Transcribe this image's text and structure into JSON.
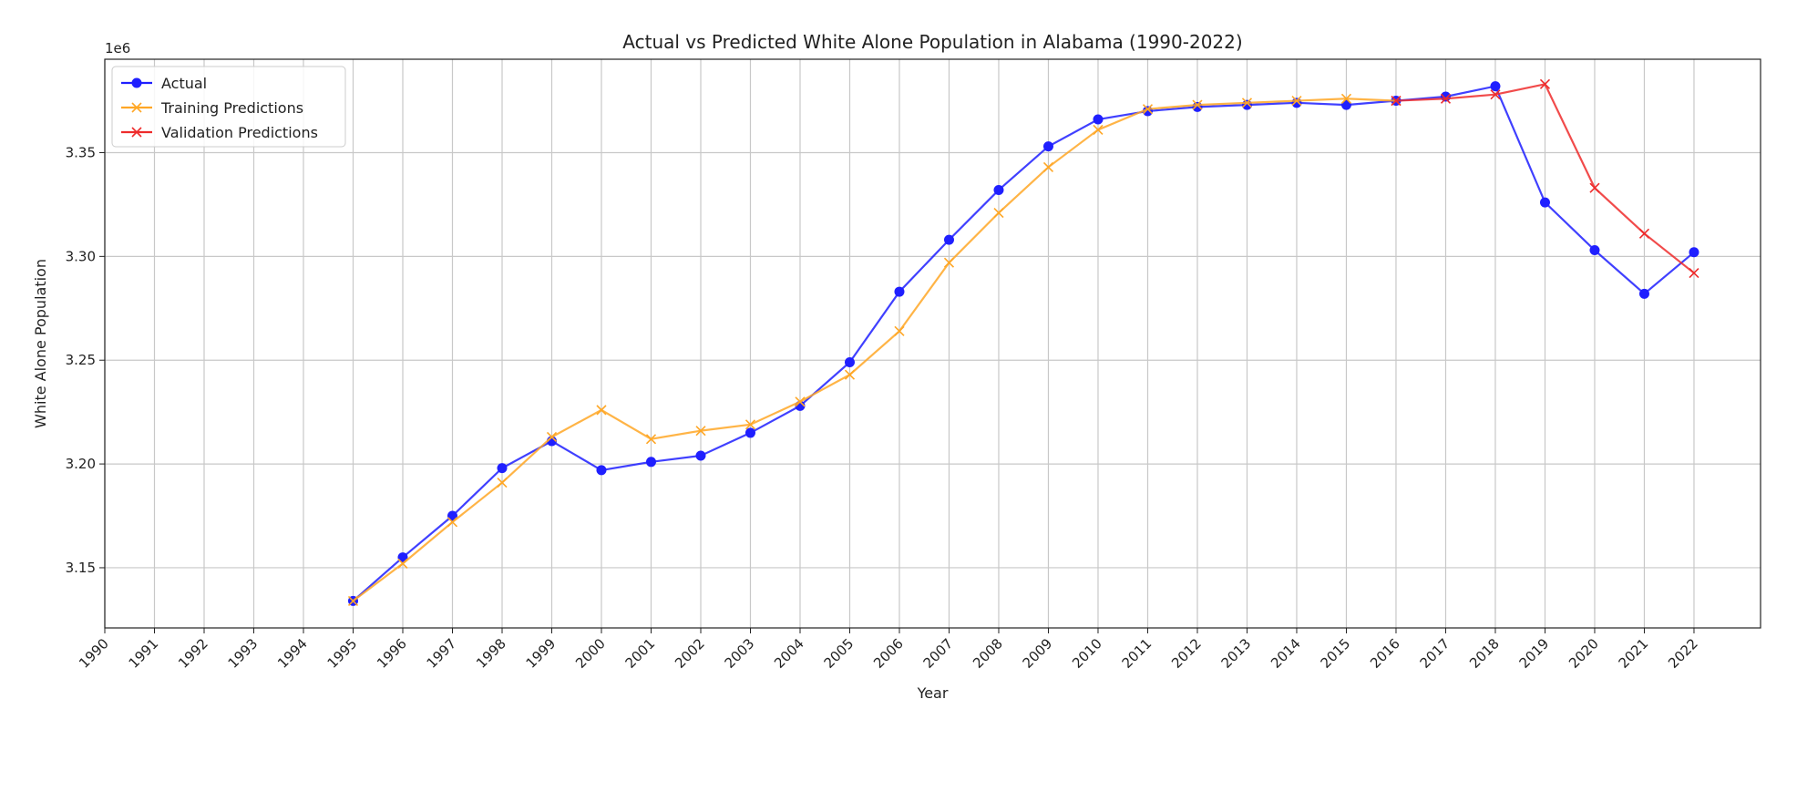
{
  "chart_data": {
    "type": "line",
    "title": "Actual vs Predicted White Alone Population in Alabama (1990-2022)",
    "xlabel": "Year",
    "ylabel": "White Alone Population",
    "y_multiplier_label": "1e6",
    "xlim": [
      1990,
      2022
    ],
    "ylim": [
      3.121,
      3.395
    ],
    "x_ticks": [
      "1990",
      "1991",
      "1992",
      "1993",
      "1994",
      "1995",
      "1996",
      "1997",
      "1998",
      "1999",
      "2000",
      "2001",
      "2002",
      "2003",
      "2004",
      "2005",
      "2006",
      "2007",
      "2008",
      "2009",
      "2010",
      "2011",
      "2012",
      "2013",
      "2014",
      "2015",
      "2016",
      "2017",
      "2018",
      "2019",
      "2020",
      "2021",
      "2022"
    ],
    "y_ticks": [
      3.15,
      3.2,
      3.25,
      3.3,
      3.35
    ],
    "y_tick_labels": [
      "3.15",
      "3.20",
      "3.25",
      "3.30",
      "3.35"
    ],
    "grid": true,
    "legend_position": "top-left",
    "series": [
      {
        "name": "Actual",
        "color": "#1f1fff",
        "marker": "circle",
        "x": [
          1995,
          1996,
          1997,
          1998,
          1999,
          2000,
          2001,
          2002,
          2003,
          2004,
          2005,
          2006,
          2007,
          2008,
          2009,
          2010,
          2011,
          2012,
          2013,
          2014,
          2015,
          2016,
          2017,
          2018,
          2019,
          2020,
          2021,
          2022
        ],
        "values": [
          3.134,
          3.155,
          3.175,
          3.198,
          3.211,
          3.197,
          3.201,
          3.204,
          3.215,
          3.228,
          3.249,
          3.283,
          3.308,
          3.332,
          3.353,
          3.366,
          3.37,
          3.372,
          3.373,
          3.374,
          3.373,
          3.375,
          3.377,
          3.382,
          3.326,
          3.303,
          3.282,
          3.302
        ]
      },
      {
        "name": "Training Predictions",
        "color": "#ffa726",
        "marker": "x",
        "x": [
          1995,
          1996,
          1997,
          1998,
          1999,
          2000,
          2001,
          2002,
          2003,
          2004,
          2005,
          2006,
          2007,
          2008,
          2009,
          2010,
          2011,
          2012,
          2013,
          2014,
          2015,
          2016
        ],
        "values": [
          3.134,
          3.152,
          3.172,
          3.191,
          3.213,
          3.226,
          3.212,
          3.216,
          3.219,
          3.23,
          3.243,
          3.264,
          3.297,
          3.321,
          3.343,
          3.361,
          3.371,
          3.373,
          3.374,
          3.375,
          3.376,
          3.375
        ]
      },
      {
        "name": "Validation Predictions",
        "color": "#ee2b2b",
        "marker": "x",
        "x": [
          2016,
          2017,
          2018,
          2019,
          2020,
          2021,
          2022
        ],
        "values": [
          3.375,
          3.376,
          3.378,
          3.383,
          3.333,
          3.311,
          3.292
        ]
      }
    ]
  }
}
